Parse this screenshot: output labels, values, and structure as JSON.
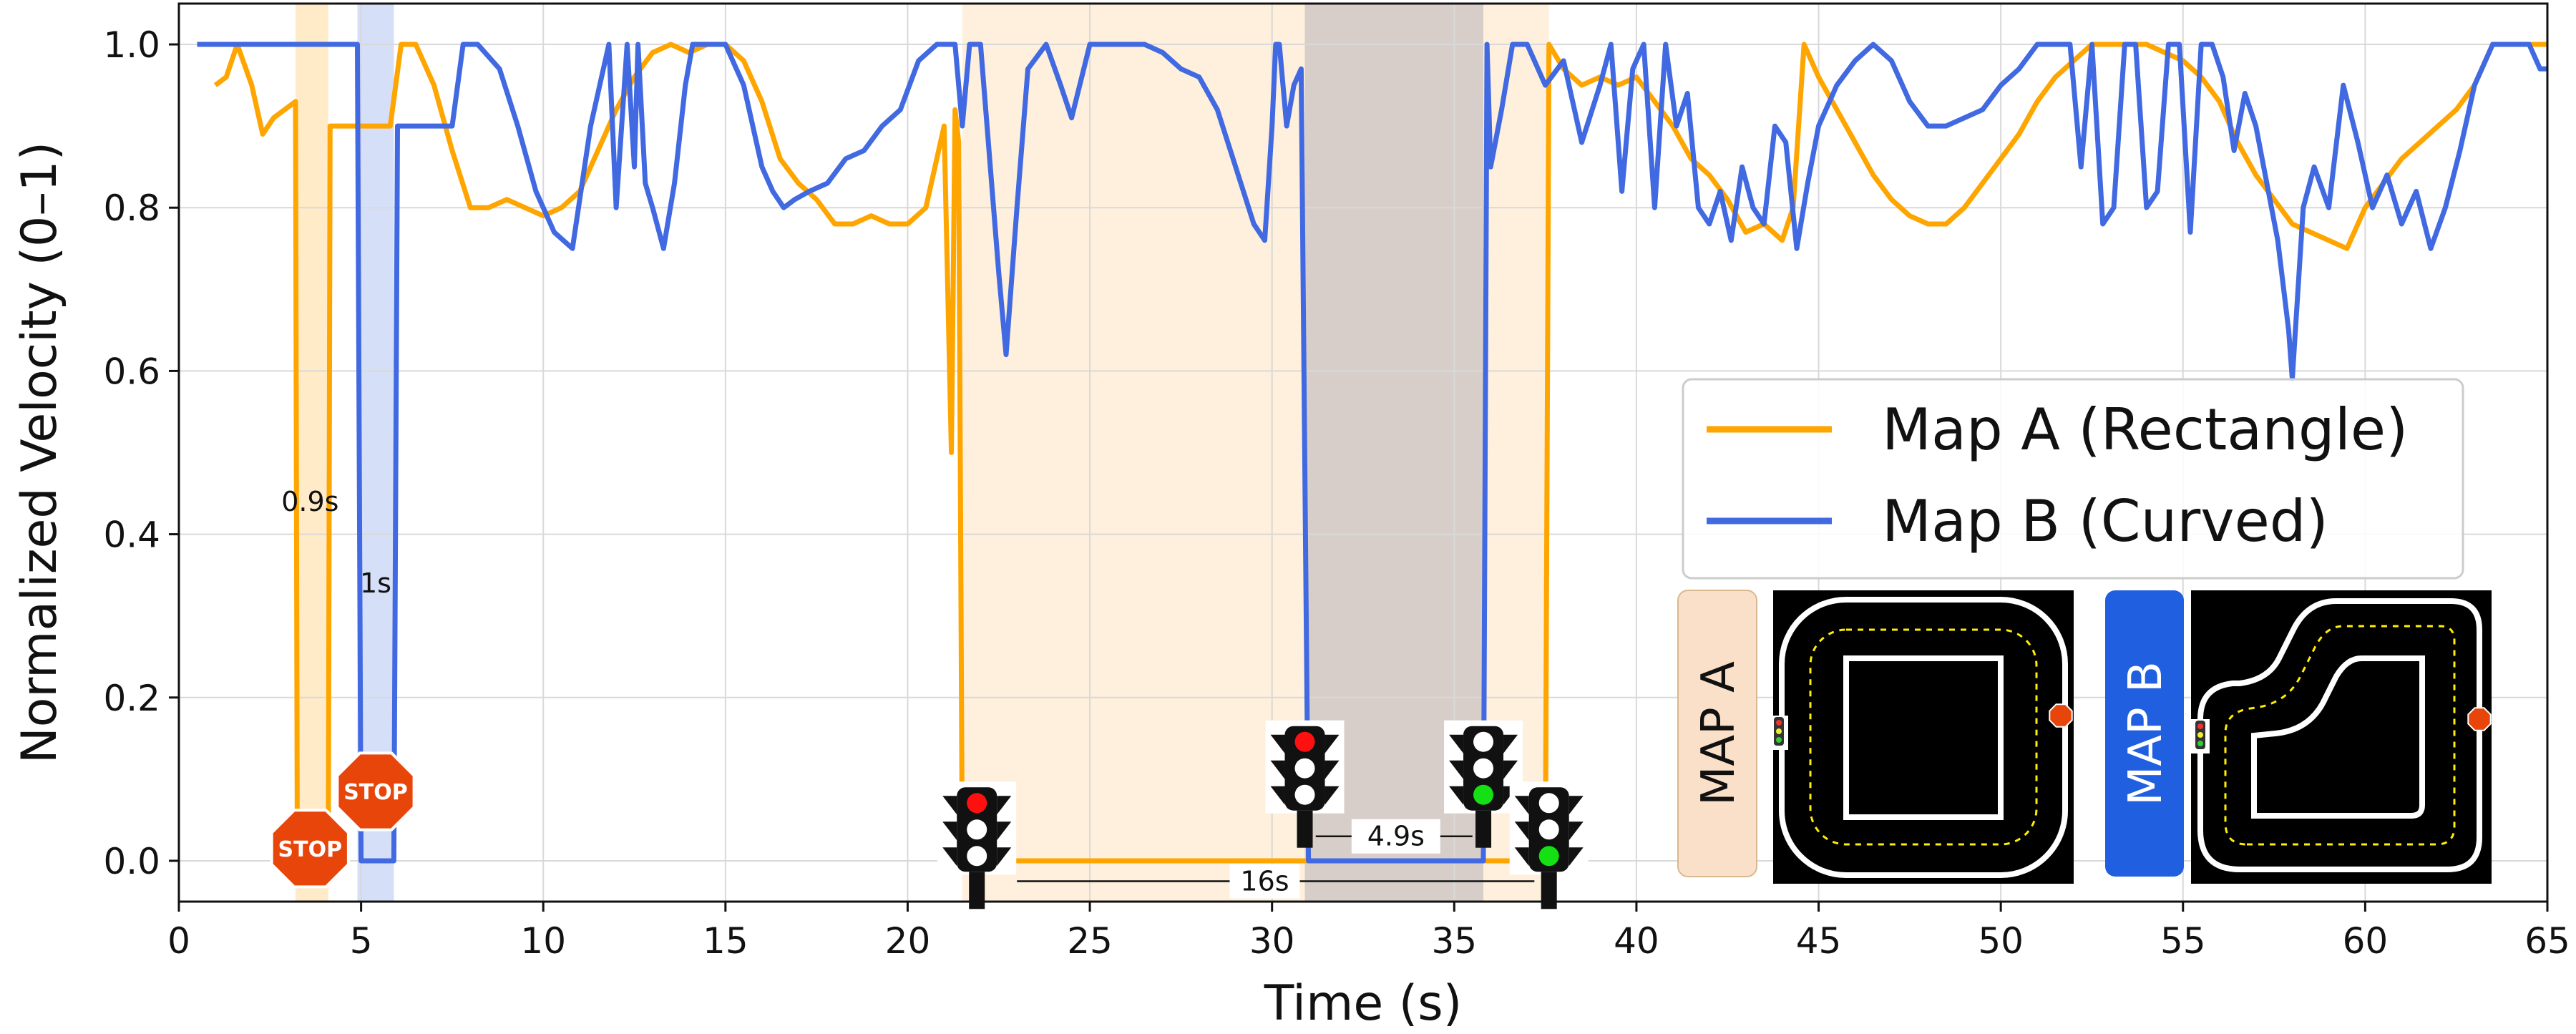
{
  "chart_data": {
    "type": "line",
    "xlabel": "Time (s)",
    "ylabel": "Normalized Velocity (0–1)",
    "xlim": [
      0,
      65
    ],
    "ylim": [
      -0.05,
      1.05
    ],
    "xticks": [
      "0",
      "5",
      "10",
      "15",
      "20",
      "25",
      "30",
      "35",
      "40",
      "45",
      "50",
      "55",
      "60",
      "65"
    ],
    "yticks": [
      "0.0",
      "0.2",
      "0.4",
      "0.6",
      "0.8",
      "1.0"
    ],
    "grid": true,
    "legend_position": "right",
    "series": [
      {
        "name": "Map A (Rectangle)",
        "color": "#FFA500",
        "x": [
          1.0,
          1.3,
          1.6,
          2.0,
          2.3,
          2.6,
          2.9,
          3.2,
          3.25,
          4.1,
          4.15,
          5.2,
          5.8,
          6.1,
          6.5,
          7.0,
          7.5,
          8.0,
          8.5,
          9.0,
          9.5,
          10.0,
          10.5,
          11.0,
          11.5,
          12.0,
          12.5,
          13.0,
          13.5,
          14.0,
          14.5,
          15.0,
          15.5,
          16.0,
          16.5,
          17.0,
          17.5,
          18.0,
          18.5,
          19.0,
          19.5,
          20.0,
          20.5,
          21.0,
          21.2,
          21.3,
          21.4,
          21.5,
          21.6,
          21.7,
          23.0,
          25.0,
          28.0,
          31.0,
          34.0,
          37.5,
          37.6,
          38.0,
          38.5,
          39.0,
          39.5,
          40.0,
          40.5,
          41.0,
          41.5,
          42.0,
          42.5,
          43.0,
          43.5,
          44.0,
          44.3,
          44.6,
          45.0,
          45.5,
          46.0,
          46.5,
          47.0,
          47.5,
          48.0,
          48.5,
          49.0,
          49.5,
          50.0,
          50.5,
          51.0,
          51.5,
          52.0,
          52.5,
          53.0,
          53.5,
          54.0,
          54.5,
          55.0,
          55.5,
          56.0,
          56.5,
          57.0,
          57.5,
          58.0,
          58.5,
          59.0,
          59.5,
          60.0,
          60.5,
          61.0,
          61.5,
          62.0,
          62.5,
          63.0,
          63.5,
          64.0,
          64.5,
          65.0
        ],
        "y": [
          0.95,
          0.96,
          1.0,
          0.95,
          0.89,
          0.91,
          0.92,
          0.93,
          0.0,
          0.0,
          0.9,
          0.9,
          0.9,
          1.0,
          1.0,
          0.95,
          0.87,
          0.8,
          0.8,
          0.81,
          0.8,
          0.79,
          0.8,
          0.82,
          0.87,
          0.92,
          0.96,
          0.99,
          1.0,
          0.99,
          1.0,
          1.0,
          0.98,
          0.93,
          0.86,
          0.83,
          0.81,
          0.78,
          0.78,
          0.79,
          0.78,
          0.78,
          0.8,
          0.9,
          0.5,
          0.92,
          0.88,
          0.0,
          0.0,
          0.0,
          0.0,
          0.0,
          0.0,
          0.0,
          0.0,
          0.0,
          1.0,
          0.97,
          0.95,
          0.96,
          0.95,
          0.96,
          0.93,
          0.9,
          0.86,
          0.84,
          0.81,
          0.77,
          0.78,
          0.76,
          0.8,
          1.0,
          0.96,
          0.92,
          0.88,
          0.84,
          0.81,
          0.79,
          0.78,
          0.78,
          0.8,
          0.83,
          0.86,
          0.89,
          0.93,
          0.96,
          0.98,
          1.0,
          1.0,
          1.0,
          1.0,
          0.99,
          0.98,
          0.96,
          0.93,
          0.88,
          0.84,
          0.81,
          0.78,
          0.77,
          0.76,
          0.75,
          0.8,
          0.83,
          0.86,
          0.88,
          0.9,
          0.92,
          0.95,
          1.0,
          1.0,
          1.0,
          1.0
        ]
      },
      {
        "name": "Map B (Curved)",
        "color": "#4169E1",
        "x": [
          0.5,
          1.5,
          3.0,
          4.5,
          4.9,
          5.0,
          5.9,
          6.0,
          7.5,
          7.8,
          8.2,
          8.8,
          9.3,
          9.8,
          10.3,
          10.8,
          11.3,
          11.8,
          12.0,
          12.3,
          12.5,
          12.6,
          12.8,
          13.0,
          13.3,
          13.6,
          13.9,
          14.1,
          14.5,
          15.0,
          15.5,
          16.0,
          16.3,
          16.6,
          16.9,
          17.3,
          17.8,
          18.3,
          18.8,
          19.3,
          19.8,
          20.3,
          20.8,
          21.3,
          21.5,
          21.7,
          22.0,
          22.5,
          22.7,
          23.0,
          23.3,
          23.8,
          24.2,
          24.5,
          25.0,
          25.5,
          26.0,
          26.5,
          27.0,
          27.5,
          28.0,
          28.5,
          29.0,
          29.5,
          29.8,
          30.0,
          30.1,
          30.2,
          30.4,
          30.6,
          30.8,
          31.0,
          32.0,
          33.0,
          34.0,
          35.0,
          35.8,
          35.9,
          36.0,
          36.3,
          36.6,
          37.0,
          37.5,
          38.0,
          38.5,
          39.0,
          39.3,
          39.6,
          39.9,
          40.2,
          40.5,
          40.8,
          41.1,
          41.4,
          41.7,
          42.0,
          42.3,
          42.6,
          42.9,
          43.2,
          43.5,
          43.8,
          44.1,
          44.4,
          44.7,
          45.0,
          45.5,
          46.0,
          46.5,
          47.0,
          47.5,
          48.0,
          48.5,
          49.0,
          49.5,
          50.0,
          50.5,
          51.0,
          51.3,
          51.6,
          51.9,
          52.2,
          52.5,
          52.8,
          53.1,
          53.4,
          53.7,
          54.0,
          54.3,
          54.6,
          54.9,
          55.2,
          55.5,
          55.8,
          56.1,
          56.4,
          56.7,
          57.0,
          57.3,
          57.6,
          57.9,
          58.0,
          58.3,
          58.6,
          59.0,
          59.4,
          59.8,
          60.2,
          60.6,
          61.0,
          61.4,
          61.8,
          62.2,
          62.6,
          63.0,
          63.5,
          64.0,
          64.5,
          64.8,
          65.0
        ],
        "y": [
          1.0,
          1.0,
          1.0,
          1.0,
          1.0,
          0.0,
          0.0,
          0.9,
          0.9,
          1.0,
          1.0,
          0.97,
          0.9,
          0.82,
          0.77,
          0.75,
          0.9,
          1.0,
          0.8,
          1.0,
          0.85,
          1.0,
          0.83,
          0.8,
          0.75,
          0.83,
          0.95,
          1.0,
          1.0,
          1.0,
          0.95,
          0.85,
          0.82,
          0.8,
          0.81,
          0.82,
          0.83,
          0.86,
          0.87,
          0.9,
          0.92,
          0.98,
          1.0,
          1.0,
          0.9,
          1.0,
          1.0,
          0.72,
          0.62,
          0.8,
          0.97,
          1.0,
          0.95,
          0.91,
          1.0,
          1.0,
          1.0,
          1.0,
          0.99,
          0.97,
          0.96,
          0.92,
          0.85,
          0.78,
          0.76,
          0.9,
          1.0,
          1.0,
          0.9,
          0.95,
          0.97,
          0.0,
          0.0,
          0.0,
          0.0,
          0.0,
          0.0,
          1.0,
          0.85,
          0.92,
          1.0,
          1.0,
          0.95,
          0.98,
          0.88,
          0.95,
          1.0,
          0.82,
          0.97,
          1.0,
          0.8,
          1.0,
          0.9,
          0.94,
          0.8,
          0.78,
          0.82,
          0.76,
          0.85,
          0.8,
          0.78,
          0.9,
          0.88,
          0.75,
          0.83,
          0.9,
          0.95,
          0.98,
          1.0,
          0.98,
          0.93,
          0.9,
          0.9,
          0.91,
          0.92,
          0.95,
          0.97,
          1.0,
          1.0,
          1.0,
          1.0,
          0.85,
          1.0,
          0.78,
          0.8,
          1.0,
          1.0,
          0.8,
          0.82,
          1.0,
          1.0,
          0.77,
          1.0,
          1.0,
          0.96,
          0.87,
          0.94,
          0.9,
          0.83,
          0.76,
          0.65,
          0.59,
          0.8,
          0.85,
          0.8,
          0.95,
          0.88,
          0.8,
          0.84,
          0.78,
          0.82,
          0.75,
          0.8,
          0.87,
          0.95,
          1.0,
          1.0,
          1.0,
          0.97,
          0.97
        ]
      }
    ],
    "shaded_regions": [
      {
        "x0": 3.2,
        "x1": 4.1,
        "color": "#FFE4B5"
      },
      {
        "x0": 4.9,
        "x1": 5.9,
        "color": "#C8D4F5"
      },
      {
        "x0": 21.5,
        "x1": 37.6,
        "color": "#FDEBD0"
      },
      {
        "x0": 30.9,
        "x1": 35.8,
        "color": "#C9C3C3"
      }
    ],
    "annotations": [
      {
        "text": "0.9s",
        "x": 3.6,
        "y": 0.44
      },
      {
        "text": "1s",
        "x": 5.4,
        "y": 0.34
      },
      {
        "text": "4.9s",
        "x": 33.4,
        "y": 0.03
      },
      {
        "text": "16s",
        "x": 29.8,
        "y": -0.025
      }
    ],
    "stop_signs": [
      {
        "label": "STOP",
        "x": 3.6,
        "y": 0.015
      },
      {
        "label": "STOP",
        "x": 5.4,
        "y": 0.085
      }
    ],
    "traffic_lights": [
      {
        "x": 21.9,
        "light": "red"
      },
      {
        "x": 30.9,
        "light": "red"
      },
      {
        "x": 35.8,
        "light": "green"
      },
      {
        "x": 37.6,
        "light": "green"
      }
    ],
    "inset_maps": [
      {
        "label": "MAP A",
        "label_bg": "#FAE0C8",
        "label_color": "#111111"
      },
      {
        "label": "MAP B",
        "label_bg": "#1F5FE0",
        "label_color": "#FFFFFF"
      }
    ]
  }
}
